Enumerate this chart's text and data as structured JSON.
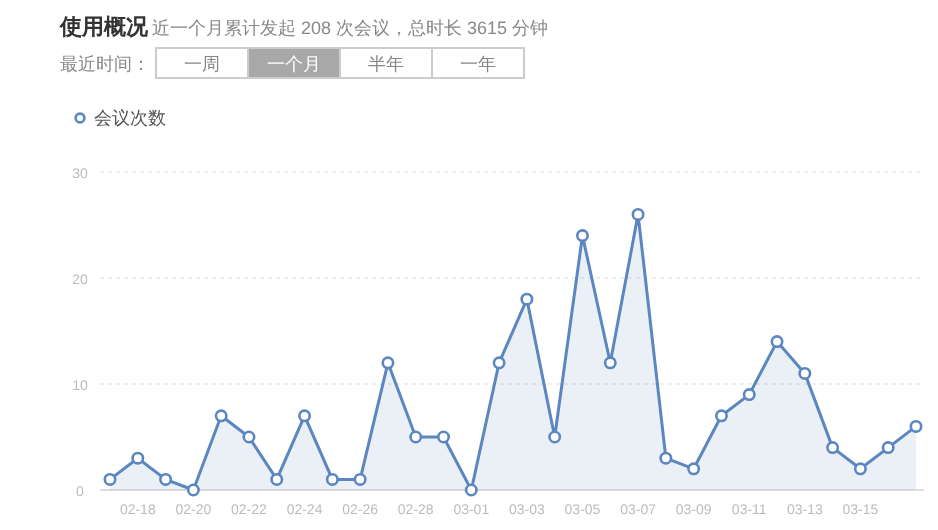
{
  "chart_data": {
    "type": "area",
    "title": "使用概况",
    "subtitle": "近一个月累计发起 208 次会议，总时长 3615 分钟",
    "annotations": [
      "最近时间：",
      "一周",
      "一个月",
      "半年",
      "一年"
    ],
    "categories": [
      null,
      "02-18",
      null,
      "02-20",
      null,
      "02-22",
      null,
      "02-24",
      null,
      "02-26",
      null,
      "02-28",
      null,
      "03-01",
      null,
      "03-03",
      null,
      "03-05",
      null,
      "03-07",
      null,
      "03-09",
      null,
      "03-11",
      null,
      "03-13",
      null,
      "03-15",
      null,
      null
    ],
    "series": [
      {
        "name": "会议次数",
        "color": "#5b86c0",
        "values": [
          1,
          3,
          1,
          0,
          7,
          5,
          1,
          7,
          1,
          1,
          12,
          5,
          5,
          0,
          12,
          18,
          5,
          24,
          12,
          26,
          3,
          2,
          7,
          9,
          14,
          11,
          4,
          2,
          4,
          6
        ]
      }
    ],
    "ylim": [
      0,
      30
    ],
    "yticks": [
      0,
      10,
      20,
      30
    ],
    "grid": "y",
    "legend": "top left",
    "marker": "circle"
  }
}
